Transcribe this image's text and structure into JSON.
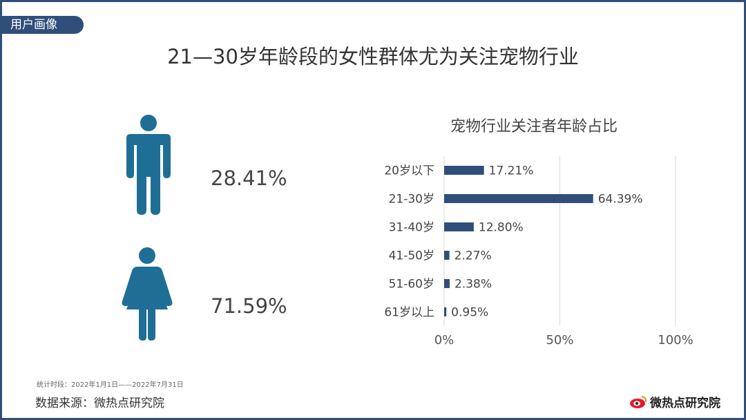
{
  "section_tag": "用户画像",
  "title": "21—30岁年龄段的女性群体尤为关注宠物行业",
  "gender": {
    "male": {
      "percent": "28.41%",
      "icon": "male-icon"
    },
    "female": {
      "percent": "71.59%",
      "icon": "female-icon"
    }
  },
  "colors": {
    "primary": "#2f4f7a",
    "icon": "#1f6e96",
    "bar": "#2f4f7a"
  },
  "chart_data": {
    "type": "bar",
    "orientation": "horizontal",
    "title": "宠物行业关注者年龄占比",
    "categories": [
      "20岁以下",
      "21-30岁",
      "31-40岁",
      "41-50岁",
      "51-60岁",
      "61岁以上"
    ],
    "values": [
      17.21,
      64.39,
      12.8,
      2.27,
      2.38,
      0.95
    ],
    "value_labels": [
      "17.21%",
      "64.39%",
      "12.80%",
      "2.27%",
      "2.38%",
      "0.95%"
    ],
    "xlim": [
      0,
      100
    ],
    "xticks": [
      0,
      50,
      100
    ],
    "xtick_labels": [
      "0%",
      "50%",
      "100%"
    ],
    "grid": true
  },
  "footer": {
    "period": "统计时段：2022年1月1日——2022年7月31日",
    "source": "数据来源：微热点研究院",
    "brand": "微热点研究院",
    "brand_icon": "weibo-eye-icon"
  }
}
